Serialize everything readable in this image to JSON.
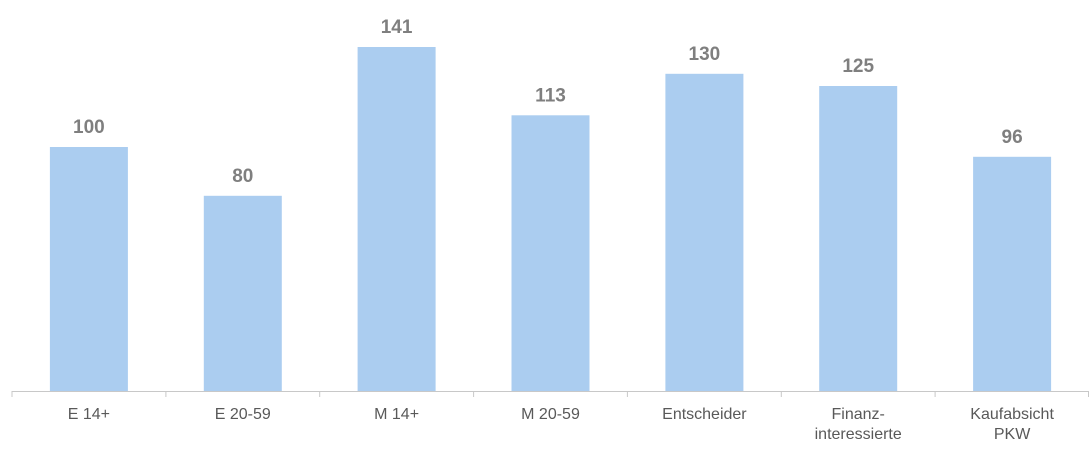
{
  "chart_data": {
    "type": "bar",
    "title": "",
    "xlabel": "",
    "ylabel": "",
    "categories": [
      "E 14+",
      "E 20-59",
      "M 14+",
      "M 20-59",
      "Entscheider",
      "Finanz-\ninteressierte",
      "Kaufabsicht\nPKW"
    ],
    "values": [
      100,
      80,
      141,
      113,
      130,
      125,
      96
    ],
    "ylim": [
      0,
      141
    ],
    "grid": false,
    "legend": "none",
    "bar_color": "#abcdf0",
    "label_color": "#7f7f7f",
    "axis_color": "#c8c8c8"
  }
}
